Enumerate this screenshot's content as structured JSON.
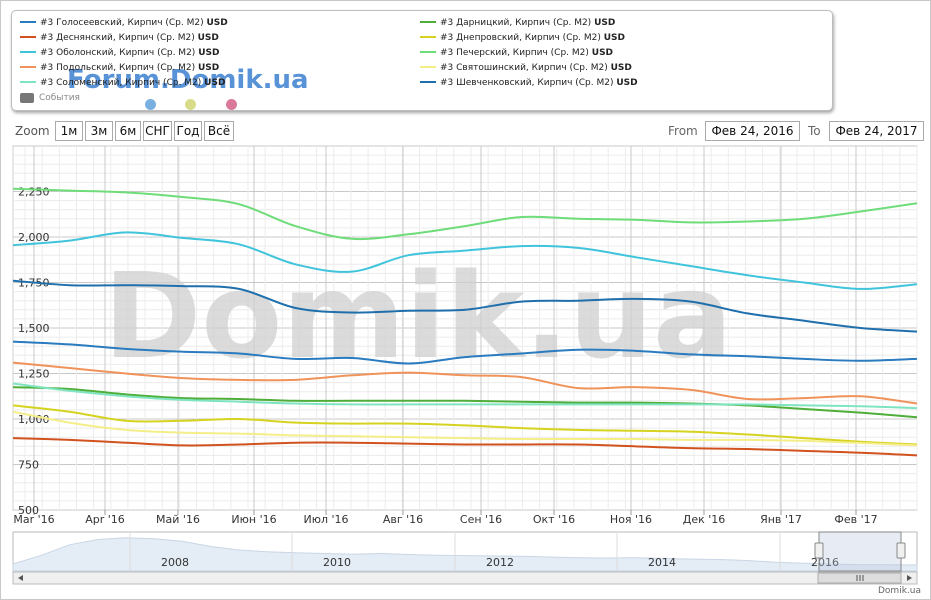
{
  "legend": {
    "left_series": [
      0,
      2,
      4,
      6,
      8
    ],
    "right_series": [
      1,
      3,
      5,
      7,
      9
    ],
    "events_label": "События",
    "watermark_text": "Forum.Domik.ua",
    "dot_colors": [
      "#7ab0e0",
      "#d8dc88",
      "#d97a9a"
    ]
  },
  "toolbar": {
    "zoom_label": "Zoom",
    "zoom_buttons": [
      "1м",
      "3м",
      "6м",
      "СНГ",
      "Год",
      "Всё"
    ],
    "from_label": "From",
    "from_value": "Фев 24, 2016",
    "to_label": "To",
    "to_value": "Фев 24, 2017"
  },
  "watermark": "Domik.ua",
  "credit": "Domik.ua",
  "navigator": {
    "years": [
      "2008",
      "2010",
      "2012",
      "2014",
      "2016"
    ]
  },
  "chart_data": {
    "type": "line",
    "x_labels": [
      "Mar '16",
      "Apr '16",
      "Май '16",
      "Июн '16",
      "Июл '16",
      "Авг '16",
      "Сен '16",
      "Окт '16",
      "Ноя '16",
      "Дек '16",
      "Янв '17",
      "Фев '17"
    ],
    "y_ticks": [
      500,
      750,
      1000,
      1250,
      1500,
      1750,
      2000,
      2250
    ],
    "ylim": [
      500,
      2500
    ],
    "grid": true,
    "series": [
      {
        "name": "#3 Голосеевский, Кирпич (Ср. М2)",
        "unit": "USD",
        "color": "#2a7bbf",
        "values": [
          1425,
          1410,
          1385,
          1370,
          1360,
          1330,
          1335,
          1305,
          1340,
          1360,
          1380,
          1375,
          1355,
          1345,
          1330,
          1320,
          1330
        ]
      },
      {
        "name": "#3 Дарницкий, Кирпич (Ср. М2)",
        "unit": "USD",
        "color": "#4fae3a",
        "values": [
          1175,
          1165,
          1135,
          1115,
          1110,
          1100,
          1100,
          1100,
          1100,
          1095,
          1090,
          1090,
          1085,
          1075,
          1055,
          1035,
          1010
        ]
      },
      {
        "name": "#3 Деснянский, Кирпич (Ср. М2)",
        "unit": "USD",
        "color": "#d2521f",
        "values": [
          895,
          885,
          870,
          855,
          860,
          870,
          870,
          865,
          860,
          860,
          860,
          850,
          840,
          835,
          825,
          815,
          800
        ]
      },
      {
        "name": "#3 Днепровский, Кирпич (Ср. М2)",
        "unit": "USD",
        "color": "#d6d220",
        "values": [
          1075,
          1040,
          990,
          990,
          1000,
          980,
          975,
          975,
          965,
          950,
          940,
          935,
          930,
          915,
          895,
          875,
          860
        ]
      },
      {
        "name": "#3 Оболонский, Кирпич (Ср. М2)",
        "unit": "USD",
        "color": "#40c4dc",
        "values": [
          1955,
          1980,
          2025,
          1995,
          1960,
          1850,
          1810,
          1900,
          1925,
          1950,
          1940,
          1890,
          1840,
          1790,
          1750,
          1715,
          1740
        ]
      },
      {
        "name": "#3 Печерский, Кирпич (Ср. М2)",
        "unit": "USD",
        "color": "#6fdc7a",
        "values": [
          2265,
          2255,
          2245,
          2220,
          2180,
          2060,
          1990,
          2015,
          2060,
          2110,
          2100,
          2095,
          2080,
          2085,
          2100,
          2140,
          2185
        ]
      },
      {
        "name": "#3 Подольский, Кирпич (Ср. М2)",
        "unit": "USD",
        "color": "#f0935a",
        "values": [
          1310,
          1280,
          1250,
          1225,
          1215,
          1215,
          1240,
          1255,
          1240,
          1230,
          1170,
          1175,
          1160,
          1110,
          1115,
          1125,
          1085
        ]
      },
      {
        "name": "#3 Святошинский, Кирпич (Ср. М2)",
        "unit": "USD",
        "color": "#f4ee88",
        "values": [
          1040,
          980,
          940,
          925,
          920,
          910,
          905,
          900,
          895,
          890,
          890,
          890,
          885,
          885,
          880,
          868,
          855
        ]
      },
      {
        "name": "#3 Соломенский, Кирпич (Ср. М2)",
        "unit": "USD",
        "color": "#7fe4c0",
        "values": [
          1195,
          1155,
          1125,
          1105,
          1095,
          1085,
          1080,
          1080,
          1080,
          1080,
          1080,
          1080,
          1080,
          1080,
          1075,
          1070,
          1060
        ]
      },
      {
        "name": "#3 Шевченковский, Кирпич (Ср. М2)",
        "unit": "USD",
        "color": "#1f6fad",
        "values": [
          1760,
          1735,
          1735,
          1730,
          1715,
          1610,
          1585,
          1595,
          1600,
          1645,
          1650,
          1660,
          1645,
          1580,
          1540,
          1500,
          1480
        ]
      }
    ]
  }
}
